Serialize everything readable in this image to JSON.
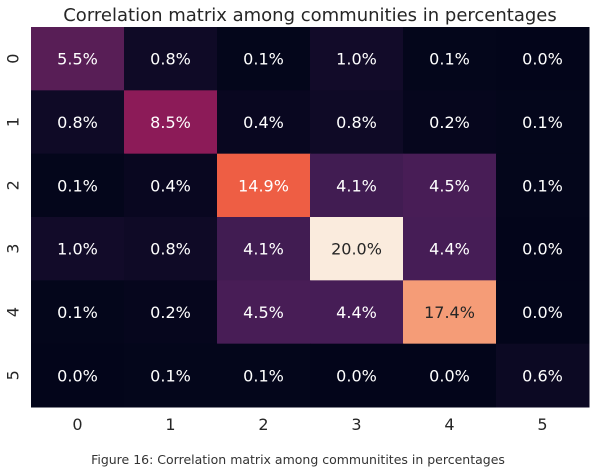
{
  "chart_data": {
    "type": "heatmap",
    "title": "Correlation matrix among communities in percentages",
    "x_categories": [
      "0",
      "1",
      "2",
      "3",
      "4",
      "5"
    ],
    "y_categories": [
      "0",
      "1",
      "2",
      "3",
      "4",
      "5"
    ],
    "values": [
      [
        5.5,
        0.8,
        0.1,
        1.0,
        0.1,
        0.0
      ],
      [
        0.8,
        8.5,
        0.4,
        0.8,
        0.2,
        0.1
      ],
      [
        0.1,
        0.4,
        14.9,
        4.1,
        4.5,
        0.1
      ],
      [
        1.0,
        0.8,
        4.1,
        20.0,
        4.4,
        0.0
      ],
      [
        0.1,
        0.2,
        4.5,
        4.4,
        17.4,
        0.0
      ],
      [
        0.0,
        0.1,
        0.1,
        0.0,
        0.0,
        0.6
      ]
    ],
    "value_suffix": "%",
    "colormap": "rocket",
    "colorbar": false,
    "xlabel": "",
    "ylabel": ""
  },
  "caption": "Figure 16: Correlation matrix among communitites in percentages"
}
